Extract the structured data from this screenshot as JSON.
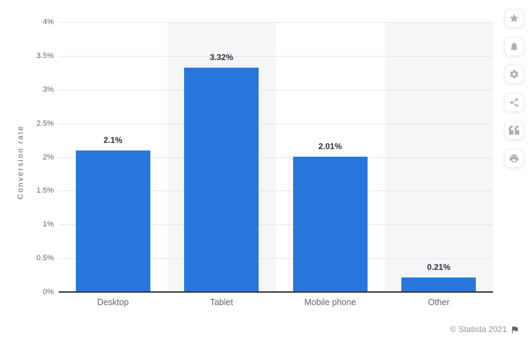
{
  "chart_data": {
    "type": "bar",
    "categories": [
      "Desktop",
      "Tablet",
      "Mobile phone",
      "Other"
    ],
    "values": [
      2.1,
      3.32,
      2.01,
      0.21
    ],
    "value_labels": [
      "2.1%",
      "3.32%",
      "2.01%",
      "0.21%"
    ],
    "title": "",
    "xlabel": "",
    "ylabel": "Conversion rate",
    "ylim": [
      0,
      4
    ],
    "yticks": [
      0,
      0.5,
      1,
      1.5,
      2,
      2.5,
      3,
      3.5,
      4
    ],
    "ytick_labels": [
      "0%",
      "0.5%",
      "1%",
      "1.5%",
      "2%",
      "2.5%",
      "3%",
      "3.5%",
      "4%"
    ],
    "grid": true,
    "legend": false,
    "banded_category_indexes": [
      1,
      3
    ],
    "colors": {
      "bar": "#2877dc",
      "band": "#f5f6f8",
      "grid": "#e6e7e9",
      "axis": "#303438"
    }
  },
  "toolbar": {
    "buttons": [
      {
        "name": "favorite",
        "icon": "star-icon"
      },
      {
        "name": "notifications",
        "icon": "bell-icon"
      },
      {
        "name": "settings",
        "icon": "gear-icon"
      },
      {
        "name": "share",
        "icon": "share-icon"
      },
      {
        "name": "cite",
        "icon": "quote-icon"
      },
      {
        "name": "print",
        "icon": "print-icon"
      }
    ]
  },
  "footer": {
    "copyright": "© Statista 2021",
    "flag_icon": "flag-icon"
  }
}
